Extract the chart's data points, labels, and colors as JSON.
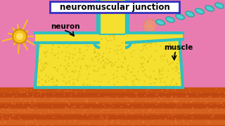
{
  "bg_color": "#e87cb0",
  "title_text": "neuromuscular junction",
  "title_box_color": "#ffffff",
  "title_border_color": "#3030c0",
  "neuron_label": "neuron",
  "muscle_label": "muscle",
  "label_color": "#000000",
  "axon_color": "#f5e030",
  "teal_outline": "#30c0c0",
  "muscle_body_color": "#f5e030",
  "neuron_cell_color": "#f5c020",
  "neuron_dendrite_color": "#f5c020"
}
